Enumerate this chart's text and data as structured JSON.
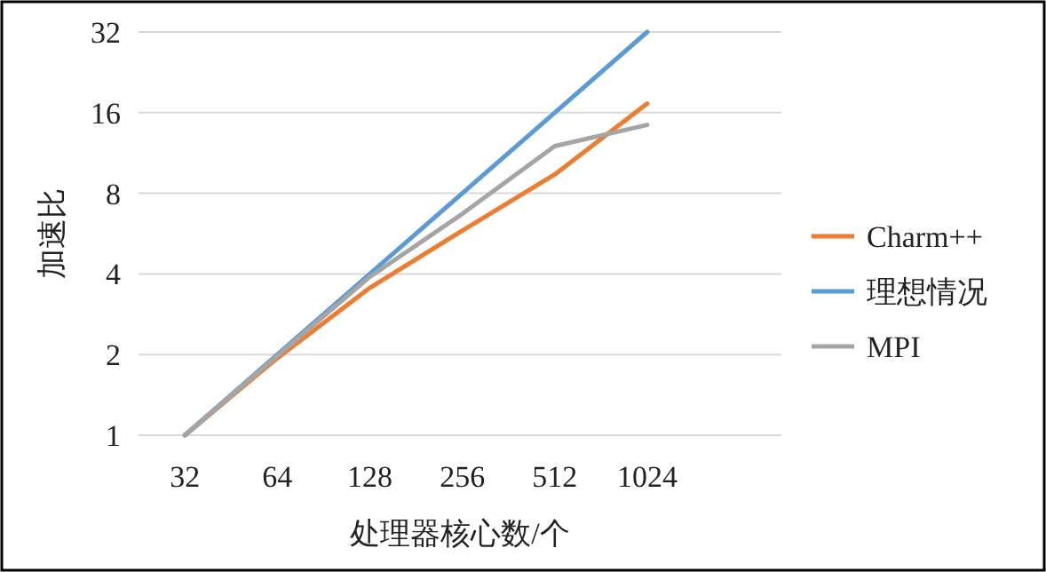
{
  "chart_data": {
    "type": "line",
    "xlabel": "处理器核心数/个",
    "ylabel": "加速比",
    "x": [
      32,
      64,
      128,
      256,
      512,
      1024
    ],
    "series": [
      {
        "name": "Charm++",
        "color": "#ed7d31",
        "values": [
          1,
          1.94,
          3.55,
          5.8,
          9.4,
          17.3
        ]
      },
      {
        "name": "理想情况",
        "color": "#5b9bd5",
        "values": [
          1,
          2,
          4,
          8,
          16,
          32
        ]
      },
      {
        "name": "MPI",
        "color": "#a5a5a5",
        "values": [
          1,
          1.98,
          3.9,
          6.7,
          12,
          14.4
        ]
      }
    ],
    "log": "xy",
    "xlim": [
      22.6,
      2800
    ],
    "xticks": [
      32,
      64,
      128,
      256,
      512,
      1024
    ],
    "ylim": [
      1,
      32
    ],
    "yticks": [
      1,
      2,
      4,
      8,
      16,
      32
    ],
    "grid": "y",
    "legend": "right",
    "marker": "none",
    "line_style": "solid"
  }
}
